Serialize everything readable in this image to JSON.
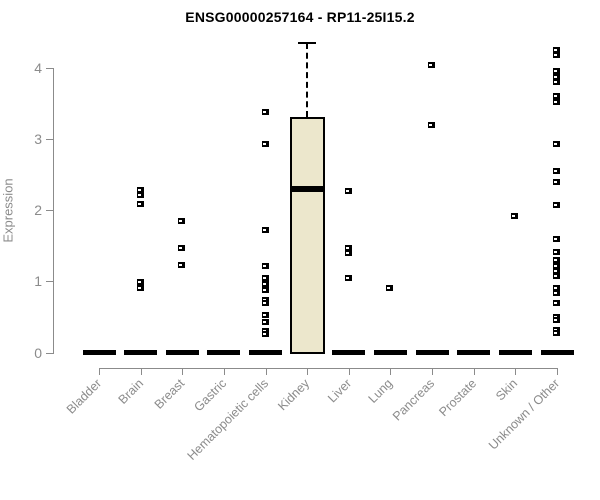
{
  "chart_data": {
    "type": "boxplot",
    "title": "ENSG00000257164 - RP11-25I15.2",
    "ylabel": "Expression",
    "yticks": [
      0,
      1,
      2,
      3,
      4
    ],
    "ylim": [
      0,
      4.35
    ],
    "grid": false,
    "categories": [
      "Bladder",
      "Brain",
      "Breast",
      "Gastric",
      "Hematopoietic cells",
      "Kidney",
      "Liver",
      "Lung",
      "Pancreas",
      "Prostate",
      "Skin",
      "Unknown / Other"
    ],
    "boxes": [
      {
        "category": "Bladder",
        "median": 0,
        "points": []
      },
      {
        "category": "Brain",
        "median": 0,
        "points": [
          2.28,
          2.21,
          2.09,
          0.99,
          0.9
        ]
      },
      {
        "category": "Breast",
        "median": 0,
        "points": [
          1.85,
          1.46,
          1.23
        ]
      },
      {
        "category": "Gastric",
        "median": 0,
        "points": []
      },
      {
        "category": "Hematopoietic cells",
        "median": 0,
        "points": [
          3.37,
          2.92,
          1.72,
          1.21,
          1.04,
          0.96,
          0.88,
          0.73,
          0.7,
          0.52,
          0.43,
          0.3,
          0.26
        ]
      },
      {
        "category": "Kidney",
        "median": 2.29,
        "q1": 0,
        "q3": 3.31,
        "whisker_low": 0,
        "whisker_high": 4.35,
        "points": []
      },
      {
        "category": "Liver",
        "median": 0,
        "points": [
          2.26,
          1.47,
          1.4,
          1.04
        ]
      },
      {
        "category": "Lung",
        "median": 0,
        "points": [
          0.91
        ]
      },
      {
        "category": "Pancreas",
        "median": 0,
        "points": [
          4.04,
          3.2
        ]
      },
      {
        "category": "Prostate",
        "median": 0,
        "points": []
      },
      {
        "category": "Skin",
        "median": 0,
        "points": [
          1.91
        ]
      },
      {
        "category": "Unknown / Other",
        "median": 0,
        "points": [
          4.24,
          4.18,
          3.95,
          3.87,
          3.8,
          3.6,
          3.52,
          2.93,
          2.55,
          2.39,
          2.07,
          1.59,
          1.41,
          1.3,
          1.22,
          1.14,
          1.07,
          0.91,
          0.83,
          0.7,
          0.5,
          0.46,
          0.31,
          0.27
        ]
      }
    ],
    "colors": {
      "box_fill": "#ece7cc",
      "box_border": "#000000",
      "median": "#000000",
      "point": "#000000",
      "axis": "#8b8b8b",
      "tick_label": "#8b8b8b",
      "title": "#000000"
    }
  }
}
